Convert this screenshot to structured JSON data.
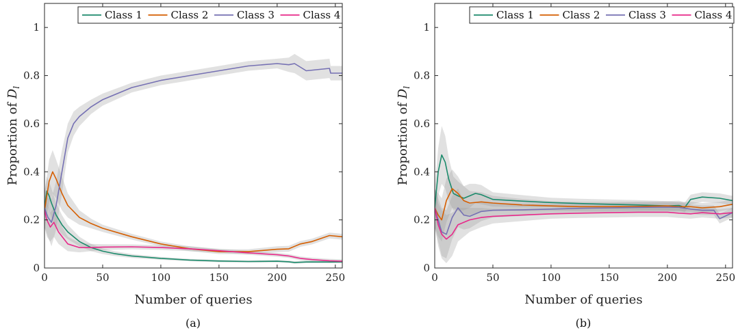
{
  "chart_data": [
    {
      "type": "line",
      "caption": "(a)",
      "xlabel": "Number of queries",
      "ylabel_prefix": "Proportion of ",
      "ylabel_symbol": "D",
      "ylabel_sub": "l",
      "xlim": [
        0,
        256
      ],
      "ylim": [
        0,
        1.1
      ],
      "xticks": [
        0,
        50,
        100,
        150,
        200,
        250
      ],
      "yticks": [
        0,
        0.2,
        0.4,
        0.6,
        0.8,
        1
      ],
      "ytick_labels": [
        "0",
        "0.2",
        "0.4",
        "0.6",
        "0.8",
        "1"
      ],
      "grid": false,
      "legend_position": "top",
      "series": [
        {
          "name": "Class 1",
          "color": "#1b8a6b",
          "x": [
            0,
            2,
            4,
            6,
            10,
            15,
            20,
            30,
            40,
            50,
            60,
            75,
            100,
            125,
            150,
            175,
            200,
            210,
            215,
            225,
            245,
            256
          ],
          "y": [
            0.25,
            0.32,
            0.3,
            0.27,
            0.22,
            0.18,
            0.15,
            0.11,
            0.085,
            0.07,
            0.06,
            0.05,
            0.04,
            0.033,
            0.029,
            0.027,
            0.028,
            0.026,
            0.023,
            0.025,
            0.025,
            0.026
          ],
          "band": [
            0.06,
            0.06,
            0.06,
            0.06,
            0.05,
            0.04,
            0.03,
            0.02,
            0.015,
            0.012,
            0.01,
            0.008,
            0.006,
            0.005,
            0.005,
            0.005,
            0.005,
            0.005,
            0.005,
            0.005,
            0.005,
            0.005
          ]
        },
        {
          "name": "Class 2",
          "color": "#d55e00",
          "x": [
            0,
            2,
            4,
            7,
            10,
            15,
            20,
            30,
            40,
            50,
            75,
            100,
            125,
            150,
            175,
            200,
            210,
            215,
            220,
            230,
            245,
            256
          ],
          "y": [
            0.24,
            0.3,
            0.36,
            0.4,
            0.37,
            0.31,
            0.26,
            0.21,
            0.185,
            0.165,
            0.13,
            0.1,
            0.08,
            0.068,
            0.068,
            0.078,
            0.08,
            0.09,
            0.1,
            0.11,
            0.135,
            0.13
          ],
          "band": [
            0.08,
            0.08,
            0.09,
            0.09,
            0.08,
            0.07,
            0.05,
            0.03,
            0.02,
            0.015,
            0.012,
            0.01,
            0.01,
            0.01,
            0.01,
            0.012,
            0.012,
            0.012,
            0.012,
            0.012,
            0.012,
            0.012
          ]
        },
        {
          "name": "Class 3",
          "color": "#7570b3",
          "x": [
            0,
            3,
            6,
            10,
            15,
            20,
            25,
            30,
            40,
            50,
            75,
            100,
            125,
            150,
            175,
            200,
            210,
            215,
            225,
            245,
            246,
            256
          ],
          "y": [
            0.25,
            0.21,
            0.19,
            0.26,
            0.4,
            0.54,
            0.6,
            0.63,
            0.67,
            0.7,
            0.75,
            0.78,
            0.8,
            0.82,
            0.84,
            0.85,
            0.845,
            0.85,
            0.82,
            0.83,
            0.81,
            0.81
          ],
          "band": [
            0.08,
            0.08,
            0.1,
            0.1,
            0.09,
            0.06,
            0.05,
            0.04,
            0.03,
            0.025,
            0.02,
            0.02,
            0.02,
            0.02,
            0.02,
            0.02,
            0.03,
            0.04,
            0.04,
            0.04,
            0.03,
            0.03
          ]
        },
        {
          "name": "Class 4",
          "color": "#e7298a",
          "x": [
            0,
            2,
            5,
            8,
            12,
            20,
            30,
            40,
            50,
            75,
            100,
            125,
            150,
            175,
            200,
            210,
            215,
            220,
            230,
            245,
            256
          ],
          "y": [
            0.24,
            0.2,
            0.17,
            0.19,
            0.15,
            0.1,
            0.085,
            0.085,
            0.087,
            0.088,
            0.085,
            0.08,
            0.072,
            0.063,
            0.055,
            0.05,
            0.045,
            0.04,
            0.035,
            0.03,
            0.028
          ],
          "band": [
            0.07,
            0.07,
            0.06,
            0.06,
            0.05,
            0.03,
            0.02,
            0.015,
            0.012,
            0.01,
            0.01,
            0.01,
            0.008,
            0.008,
            0.008,
            0.008,
            0.008,
            0.008,
            0.008,
            0.008,
            0.008
          ]
        }
      ]
    },
    {
      "type": "line",
      "caption": "(b)",
      "xlabel": "Number of queries",
      "ylabel_prefix": "Proportion of ",
      "ylabel_symbol": "D",
      "ylabel_sub": "l",
      "xlim": [
        0,
        256
      ],
      "ylim": [
        0,
        1.1
      ],
      "xticks": [
        0,
        50,
        100,
        150,
        200,
        250
      ],
      "yticks": [
        0,
        0.2,
        0.4,
        0.6,
        0.8,
        1
      ],
      "ytick_labels": [
        "0",
        "0.2",
        "0.4",
        "0.6",
        "0.8",
        "1"
      ],
      "grid": false,
      "legend_position": "top",
      "series": [
        {
          "name": "Class 1",
          "color": "#1b8a6b",
          "x": [
            0,
            3,
            6,
            9,
            12,
            16,
            20,
            25,
            30,
            35,
            40,
            50,
            75,
            100,
            125,
            150,
            175,
            200,
            210,
            215,
            220,
            230,
            245,
            256
          ],
          "y": [
            0.25,
            0.4,
            0.47,
            0.44,
            0.37,
            0.31,
            0.3,
            0.29,
            0.3,
            0.31,
            0.305,
            0.285,
            0.278,
            0.272,
            0.268,
            0.265,
            0.262,
            0.258,
            0.26,
            0.252,
            0.285,
            0.295,
            0.29,
            0.28
          ],
          "band": [
            0.08,
            0.1,
            0.12,
            0.11,
            0.09,
            0.07,
            0.06,
            0.05,
            0.05,
            0.04,
            0.04,
            0.03,
            0.025,
            0.02,
            0.02,
            0.02,
            0.02,
            0.02,
            0.02,
            0.02,
            0.02,
            0.02,
            0.02,
            0.02
          ]
        },
        {
          "name": "Class 2",
          "color": "#d55e00",
          "x": [
            0,
            3,
            6,
            10,
            15,
            20,
            25,
            30,
            40,
            50,
            75,
            100,
            125,
            150,
            175,
            200,
            210,
            220,
            230,
            245,
            256
          ],
          "y": [
            0.25,
            0.22,
            0.2,
            0.28,
            0.33,
            0.31,
            0.28,
            0.27,
            0.275,
            0.27,
            0.262,
            0.258,
            0.255,
            0.255,
            0.256,
            0.258,
            0.255,
            0.255,
            0.25,
            0.255,
            0.265
          ],
          "band": [
            0.08,
            0.09,
            0.09,
            0.09,
            0.08,
            0.07,
            0.06,
            0.05,
            0.04,
            0.03,
            0.025,
            0.02,
            0.02,
            0.02,
            0.02,
            0.02,
            0.02,
            0.02,
            0.02,
            0.02,
            0.02
          ]
        },
        {
          "name": "Class 3",
          "color": "#7570b3",
          "x": [
            0,
            3,
            6,
            10,
            15,
            20,
            25,
            30,
            40,
            50,
            75,
            100,
            125,
            150,
            175,
            200,
            210,
            220,
            230,
            240,
            245,
            256
          ],
          "y": [
            0.25,
            0.2,
            0.15,
            0.14,
            0.21,
            0.25,
            0.22,
            0.215,
            0.235,
            0.24,
            0.242,
            0.245,
            0.248,
            0.25,
            0.252,
            0.253,
            0.252,
            0.245,
            0.24,
            0.24,
            0.205,
            0.23
          ],
          "band": [
            0.08,
            0.09,
            0.1,
            0.1,
            0.09,
            0.08,
            0.06,
            0.05,
            0.04,
            0.03,
            0.025,
            0.02,
            0.02,
            0.02,
            0.02,
            0.02,
            0.02,
            0.02,
            0.02,
            0.02,
            0.02,
            0.02
          ]
        },
        {
          "name": "Class 4",
          "color": "#e7298a",
          "x": [
            0,
            3,
            6,
            10,
            15,
            20,
            30,
            40,
            50,
            75,
            100,
            125,
            150,
            175,
            200,
            210,
            220,
            230,
            245,
            256
          ],
          "y": [
            0.25,
            0.18,
            0.14,
            0.12,
            0.14,
            0.18,
            0.2,
            0.21,
            0.215,
            0.22,
            0.225,
            0.228,
            0.23,
            0.232,
            0.232,
            0.228,
            0.225,
            0.23,
            0.225,
            0.23
          ],
          "band": [
            0.08,
            0.09,
            0.1,
            0.1,
            0.09,
            0.07,
            0.05,
            0.04,
            0.03,
            0.025,
            0.02,
            0.02,
            0.02,
            0.02,
            0.02,
            0.02,
            0.02,
            0.02,
            0.02,
            0.02
          ]
        }
      ]
    }
  ]
}
